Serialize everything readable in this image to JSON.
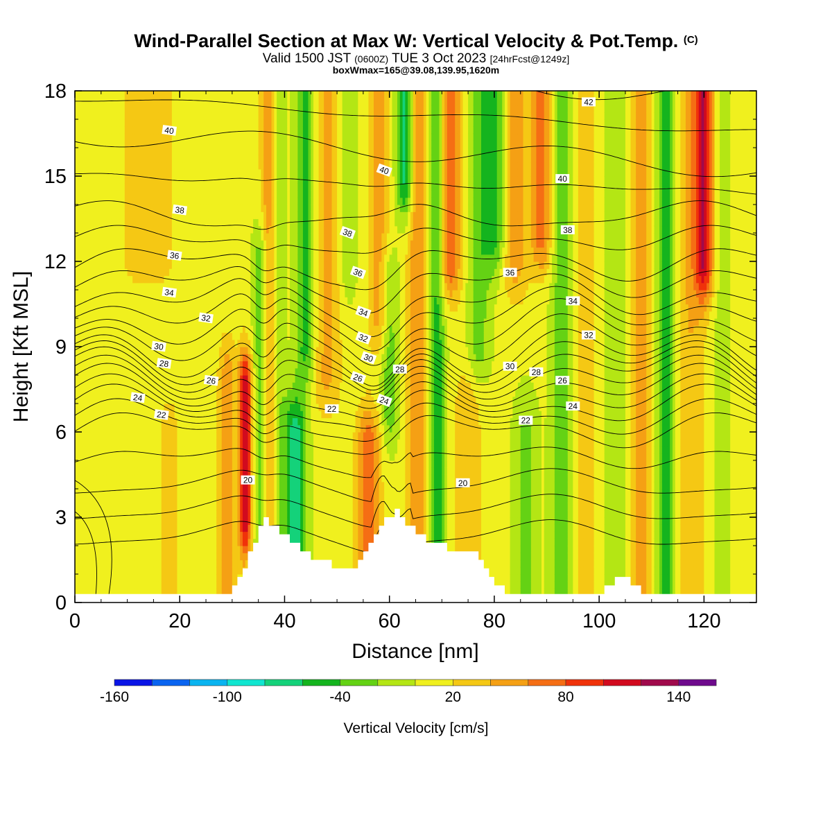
{
  "title": {
    "main": "Wind-Parallel Section at Max W: Vertical Velocity & Pot.Temp.",
    "main_tag": "(C)",
    "valid_prefix": "Valid 1500 JST",
    "valid_z": "(0600Z)",
    "valid_date": "TUE 3 Oct 2023",
    "valid_fcst": "[24hrFcst@1249z]",
    "box": "boxWmax=165@39.08,139.95,1620m"
  },
  "chart_data": {
    "type": "heatmap",
    "xlabel": "Distance [nm]",
    "ylabel": "Height [Kft MSL]",
    "xlim": [
      0,
      130
    ],
    "ylim": [
      0,
      18
    ],
    "x_ticks": [
      0,
      20,
      40,
      60,
      80,
      100,
      120
    ],
    "y_ticks": [
      0,
      3,
      6,
      9,
      12,
      15,
      18
    ],
    "colorbar": {
      "label": "Vertical Velocity [cm/s]",
      "range": [
        -160,
        160
      ],
      "tick_values": [
        -160,
        -100,
        -40,
        20,
        80,
        140
      ],
      "bins": [
        {
          "from": -160,
          "to": -140,
          "color": "#0a14e6"
        },
        {
          "from": -140,
          "to": -120,
          "color": "#0a64f0"
        },
        {
          "from": -120,
          "to": -100,
          "color": "#0ab4f0"
        },
        {
          "from": -100,
          "to": -80,
          "color": "#10e6d0"
        },
        {
          "from": -80,
          "to": -60,
          "color": "#14d27a"
        },
        {
          "from": -60,
          "to": -40,
          "color": "#14b41e"
        },
        {
          "from": -40,
          "to": -20,
          "color": "#64d214"
        },
        {
          "from": -20,
          "to": 0,
          "color": "#b4e614"
        },
        {
          "from": 0,
          "to": 20,
          "color": "#f0f01e"
        },
        {
          "from": 20,
          "to": 40,
          "color": "#f5c814"
        },
        {
          "from": 40,
          "to": 60,
          "color": "#f5a014"
        },
        {
          "from": 60,
          "to": 80,
          "color": "#f56e14"
        },
        {
          "from": 80,
          "to": 100,
          "color": "#f0320a"
        },
        {
          "from": 100,
          "to": 120,
          "color": "#d20a1e"
        },
        {
          "from": 120,
          "to": 140,
          "color": "#a00a4b"
        },
        {
          "from": 140,
          "to": 160,
          "color": "#6e0a8c"
        }
      ]
    },
    "background_w": 5,
    "w_columns": [
      {
        "x": 5,
        "sigma": 1.8,
        "w": 0
      },
      {
        "x": 14,
        "sigma": 6,
        "w": 20,
        "y_min": 12
      },
      {
        "x": 18,
        "sigma": 1.5,
        "w": 25,
        "y_max": 6
      },
      {
        "x": 29,
        "sigma": 1.2,
        "w": 45,
        "y_max": 8
      },
      {
        "x": 32.5,
        "sigma": 0.9,
        "w": 115,
        "y_min": 3,
        "y_max": 7.5
      },
      {
        "x": 35.5,
        "sigma": 1,
        "w": -45,
        "y_max": 12
      },
      {
        "x": 37,
        "sigma": 1.1,
        "w": 55
      },
      {
        "x": 38.5,
        "sigma": 1,
        "w": -30
      },
      {
        "x": 42,
        "sigma": 1.5,
        "w": -75,
        "y_max": 6
      },
      {
        "x": 44,
        "sigma": 1.3,
        "w": -55,
        "y_min": 9
      },
      {
        "x": 48,
        "sigma": 2,
        "w": 40,
        "y_min": 8
      },
      {
        "x": 52,
        "sigma": 1.2,
        "w": -25,
        "y_min": 12
      },
      {
        "x": 56,
        "sigma": 1.6,
        "w": 70,
        "y_max": 5.5
      },
      {
        "x": 58,
        "sigma": 1.5,
        "w": 45,
        "y_min": 10
      },
      {
        "x": 60,
        "sigma": 1.2,
        "w": -40,
        "y_min": 7,
        "y_max": 11
      },
      {
        "x": 63,
        "sigma": 1.2,
        "w": -80,
        "y_min": 15
      },
      {
        "x": 65.5,
        "sigma": 1.5,
        "w": 55
      },
      {
        "x": 69,
        "sigma": 1.1,
        "w": -60
      },
      {
        "x": 71.5,
        "sigma": 1.6,
        "w": 70,
        "y_min": 12
      },
      {
        "x": 75,
        "sigma": 2,
        "w": 30,
        "y_max": 7
      },
      {
        "x": 77,
        "sigma": 1.5,
        "w": -35,
        "y_min": 9
      },
      {
        "x": 80,
        "sigma": 1.5,
        "w": -55,
        "y_min": 13
      },
      {
        "x": 84,
        "sigma": 1.8,
        "w": 45,
        "y_min": 12
      },
      {
        "x": 86,
        "sigma": 1.5,
        "w": -30,
        "y_max": 6
      },
      {
        "x": 89,
        "sigma": 1.4,
        "w": 65,
        "y_min": 13
      },
      {
        "x": 93,
        "sigma": 1.5,
        "w": -40
      },
      {
        "x": 97,
        "sigma": 2,
        "w": 25
      },
      {
        "x": 103,
        "sigma": 1.3,
        "w": -25
      },
      {
        "x": 108,
        "sigma": 1.6,
        "w": 40
      },
      {
        "x": 113,
        "sigma": 1.4,
        "w": -60
      },
      {
        "x": 117,
        "sigma": 2.5,
        "w": 35
      },
      {
        "x": 120,
        "sigma": 1.3,
        "w": 100,
        "y_min": 12
      },
      {
        "x": 123,
        "sigma": 1.5,
        "w": -15
      }
    ],
    "terrain": [
      [
        0,
        0.3
      ],
      [
        28,
        0.3
      ],
      [
        30,
        0.5
      ],
      [
        32,
        1.2
      ],
      [
        34,
        2.2
      ],
      [
        35,
        2.6
      ],
      [
        36,
        2.9
      ],
      [
        38,
        2.6
      ],
      [
        41,
        2.2
      ],
      [
        43,
        1.8
      ],
      [
        45,
        1.6
      ],
      [
        47,
        1.4
      ],
      [
        49,
        1.3
      ],
      [
        53,
        1.3
      ],
      [
        55,
        1.8
      ],
      [
        57,
        2.5
      ],
      [
        59,
        3.0
      ],
      [
        61,
        3.2
      ],
      [
        63,
        2.8
      ],
      [
        66,
        2.3
      ],
      [
        71,
        1.9
      ],
      [
        76,
        1.9
      ],
      [
        78,
        1.2
      ],
      [
        80,
        0.6
      ],
      [
        83,
        0.3
      ],
      [
        100,
        0.3
      ],
      [
        102,
        0.6
      ],
      [
        104,
        0.9
      ],
      [
        106,
        0.6
      ],
      [
        108,
        0.3
      ],
      [
        130,
        0.3
      ]
    ],
    "isentropes": {
      "levels": [
        20,
        22,
        24,
        26,
        28,
        30,
        32,
        34,
        36,
        38,
        40,
        42
      ],
      "labeled": [
        {
          "value": 20,
          "x": 33,
          "y": 4.3
        },
        {
          "value": 20,
          "x": 74,
          "y": 4.2
        },
        {
          "value": 22,
          "x": 16.5,
          "y": 6.6
        },
        {
          "value": 22,
          "x": 49,
          "y": 6.8
        },
        {
          "value": 22,
          "x": 86,
          "y": 6.4
        },
        {
          "value": 24,
          "x": 12,
          "y": 7.2
        },
        {
          "value": 24,
          "x": 59,
          "y": 7.1
        },
        {
          "value": 24,
          "x": 95,
          "y": 6.9
        },
        {
          "value": 26,
          "x": 26,
          "y": 7.8
        },
        {
          "value": 26,
          "x": 54,
          "y": 7.9
        },
        {
          "value": 26,
          "x": 93,
          "y": 7.8
        },
        {
          "value": 28,
          "x": 17,
          "y": 8.4
        },
        {
          "value": 28,
          "x": 62,
          "y": 8.2
        },
        {
          "value": 28,
          "x": 88,
          "y": 8.1
        },
        {
          "value": 30,
          "x": 16,
          "y": 9.0
        },
        {
          "value": 30,
          "x": 56,
          "y": 8.6
        },
        {
          "value": 30,
          "x": 83,
          "y": 8.3
        },
        {
          "value": 32,
          "x": 25,
          "y": 10.0
        },
        {
          "value": 32,
          "x": 55,
          "y": 9.3
        },
        {
          "value": 32,
          "x": 98,
          "y": 9.4
        },
        {
          "value": 34,
          "x": 18,
          "y": 10.9
        },
        {
          "value": 34,
          "x": 55,
          "y": 10.2
        },
        {
          "value": 34,
          "x": 95,
          "y": 10.6
        },
        {
          "value": 36,
          "x": 19,
          "y": 12.2
        },
        {
          "value": 36,
          "x": 54,
          "y": 11.6
        },
        {
          "value": 36,
          "x": 83,
          "y": 11.6
        },
        {
          "value": 38,
          "x": 20,
          "y": 13.8
        },
        {
          "value": 38,
          "x": 52,
          "y": 13.0
        },
        {
          "value": 38,
          "x": 94,
          "y": 13.1
        },
        {
          "value": 40,
          "x": 18,
          "y": 16.6
        },
        {
          "value": 40,
          "x": 59,
          "y": 15.2
        },
        {
          "value": 40,
          "x": 93,
          "y": 14.9
        },
        {
          "value": 42,
          "x": 98,
          "y": 17.6
        }
      ]
    }
  }
}
